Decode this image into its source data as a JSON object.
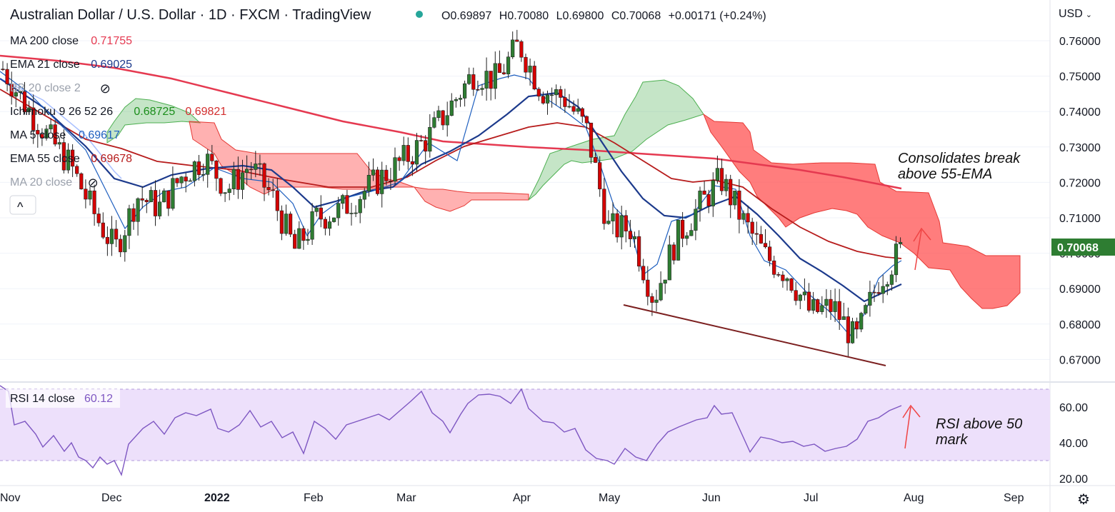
{
  "header": {
    "title": "Australian Dollar / U.S. Dollar · 1D · FXCM · TradingView",
    "ohlc": {
      "o_label": "O",
      "open": "0.69897",
      "h_label": "H",
      "high": "0.70080",
      "l_label": "L",
      "low": "0.69800",
      "c_label": "C",
      "close": "0.70068",
      "change": "+0.00171 (+0.24%)"
    },
    "currency": "USD",
    "status_color": "#26a69a"
  },
  "legend": [
    {
      "label": "MA 200 close",
      "values": [
        "0.71755"
      ],
      "colors": [
        "#e53950"
      ]
    },
    {
      "label": "EMA 21 close",
      "values": [
        "0.69025"
      ],
      "colors": [
        "#1c3a8c"
      ]
    },
    {
      "label": "BB 20 close 2",
      "values": [],
      "colors": [],
      "hidden": true
    },
    {
      "label": "Ichimoku 9 26 52 26",
      "values": [
        "0.68725",
        "0.69821"
      ],
      "colors": [
        "#1b8e1b",
        "#d32f2f"
      ]
    },
    {
      "label": "MA 5 close",
      "values": [
        "0.69617"
      ],
      "colors": [
        "#1e5fbf"
      ]
    },
    {
      "label": "EMA 55 close",
      "values": [
        "0.69678"
      ],
      "colors": [
        "#b71c1c"
      ]
    },
    {
      "label": "MA 20 close",
      "values": [],
      "colors": [],
      "hidden": true
    }
  ],
  "collapse_label": "^",
  "annotations": {
    "price_note_line1": "Consolidates break",
    "price_note_line2": "above 55-EMA",
    "rsi_note_line1": "RSI above 50",
    "rsi_note_line2": "mark"
  },
  "rsi_legend": {
    "label": "RSI 14 close",
    "value": "60.12",
    "color": "#7e57c2"
  },
  "price_axis": {
    "ticks": [
      "0.76000",
      "0.75000",
      "0.74000",
      "0.73000",
      "0.72000",
      "0.71000",
      "0.70000",
      "0.69000",
      "0.68000",
      "0.67000"
    ],
    "last_price": "0.70068",
    "last_price_color": "#2e7d32"
  },
  "rsi_axis": {
    "ticks": [
      "60.00",
      "40.00",
      "20.00"
    ]
  },
  "time_axis": {
    "labels": [
      "Nov",
      "Dec",
      "2022",
      "Feb",
      "Mar",
      "Apr",
      "May",
      "Jun",
      "Jul",
      "Aug",
      "Sep"
    ]
  },
  "colors": {
    "up": "#2e7d32",
    "down": "#d50000",
    "cloud_bull": "#4caf50",
    "cloud_bear": "#ff5252",
    "rsi_line": "#7e57c2",
    "rsi_band": "#ede0fb"
  },
  "chart_data": {
    "type": "candlestick",
    "title": "Australian Dollar / U.S. Dollar · 1D · FXCM · TradingView",
    "ylim": [
      0.665,
      0.765
    ],
    "x_labels": [
      "Nov",
      "Dec",
      "2022",
      "Feb",
      "Mar",
      "Apr",
      "May",
      "Jun",
      "Jul",
      "Aug",
      "Sep"
    ],
    "close_path": [
      [
        "2021-10-29",
        0.752
      ],
      [
        "2021-11-05",
        0.742
      ],
      [
        "2021-11-12",
        0.733
      ],
      [
        "2021-11-19",
        0.725
      ],
      [
        "2021-11-26",
        0.712
      ],
      [
        "2021-12-03",
        0.701
      ],
      [
        "2021-12-10",
        0.716
      ],
      [
        "2021-12-17",
        0.713
      ],
      [
        "2021-12-24",
        0.722
      ],
      [
        "2021-12-31",
        0.727
      ],
      [
        "2022-01-07",
        0.718
      ],
      [
        "2022-01-14",
        0.725
      ],
      [
        "2022-01-21",
        0.716
      ],
      [
        "2022-01-28",
        0.701
      ],
      [
        "2022-02-04",
        0.71
      ],
      [
        "2022-02-11",
        0.712
      ],
      [
        "2022-02-18",
        0.717
      ],
      [
        "2022-02-25",
        0.722
      ],
      [
        "2022-03-04",
        0.727
      ],
      [
        "2022-03-11",
        0.733
      ],
      [
        "2022-03-18",
        0.742
      ],
      [
        "2022-03-25",
        0.751
      ],
      [
        "2022-04-01",
        0.749
      ],
      [
        "2022-04-05",
        0.759
      ],
      [
        "2022-04-08",
        0.746
      ],
      [
        "2022-04-15",
        0.744
      ],
      [
        "2022-04-22",
        0.735
      ],
      [
        "2022-04-29",
        0.707
      ],
      [
        "2022-05-06",
        0.707
      ],
      [
        "2022-05-12",
        0.687
      ],
      [
        "2022-05-20",
        0.704
      ],
      [
        "2022-05-27",
        0.713
      ],
      [
        "2022-06-03",
        0.721
      ],
      [
        "2022-06-10",
        0.709
      ],
      [
        "2022-06-17",
        0.699
      ],
      [
        "2022-06-24",
        0.694
      ],
      [
        "2022-07-01",
        0.683
      ],
      [
        "2022-07-08",
        0.685
      ],
      [
        "2022-07-14",
        0.675
      ],
      [
        "2022-07-22",
        0.692
      ],
      [
        "2022-07-29",
        0.7007
      ]
    ],
    "series": [
      {
        "name": "MA 200 close",
        "last": 0.71755
      },
      {
        "name": "EMA 21 close",
        "last": 0.69025
      },
      {
        "name": "EMA 55 close",
        "last": 0.69678
      },
      {
        "name": "MA 5 close",
        "last": 0.69617
      },
      {
        "name": "Ichimoku 9 26 52 26",
        "last": [
          0.68725,
          0.69821
        ]
      }
    ],
    "rsi": {
      "name": "RSI 14 close",
      "last": 60.12,
      "ylim": [
        15,
        75
      ],
      "bands": [
        30,
        70
      ]
    }
  }
}
